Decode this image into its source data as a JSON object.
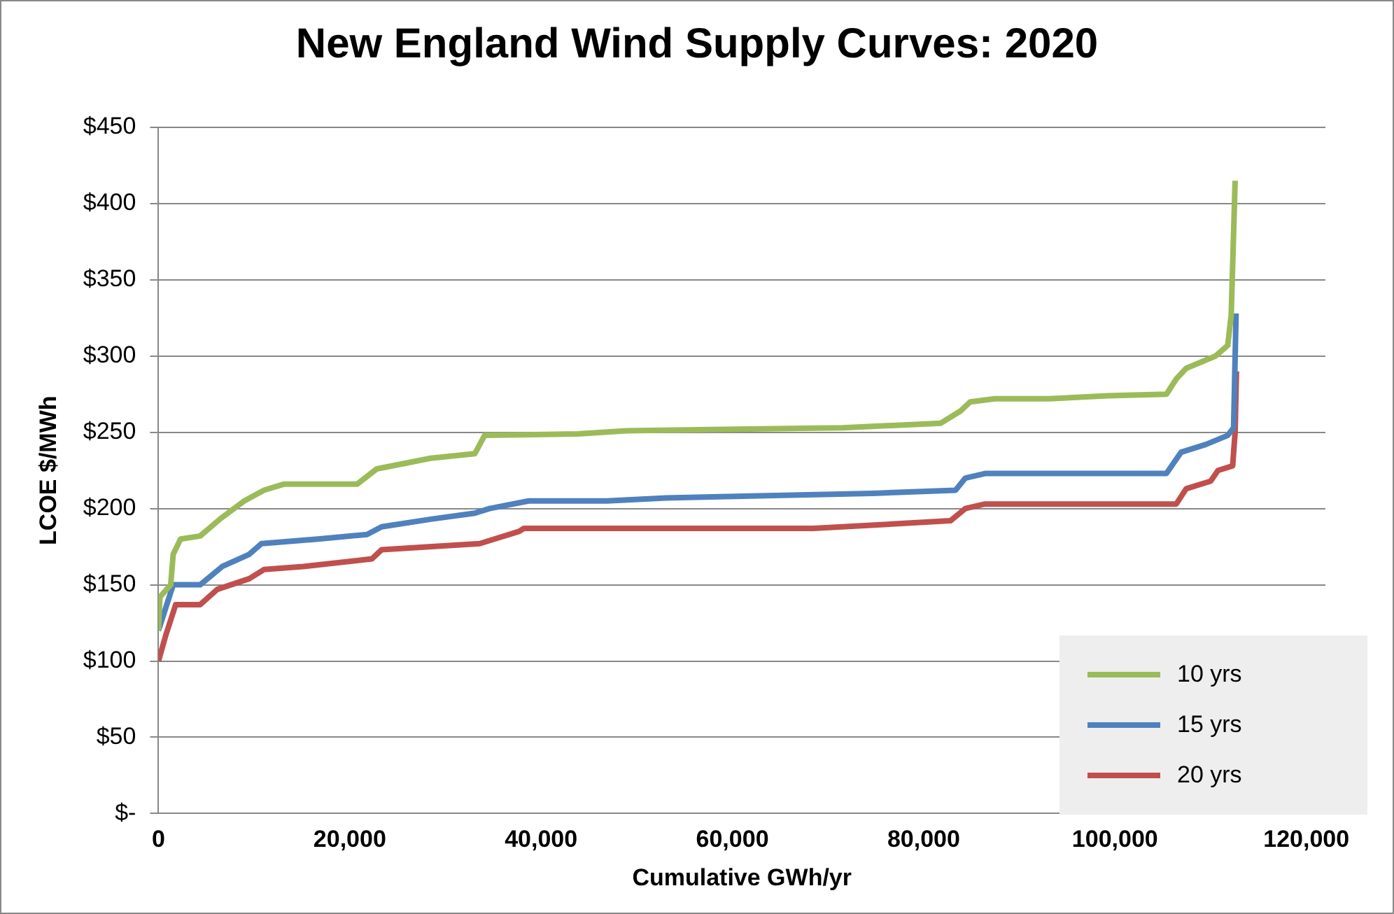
{
  "chart_data": {
    "type": "line",
    "title": "New England Wind Supply Curves: 2020",
    "xlabel": "Cumulative GWh/yr",
    "ylabel": "LCOE $/MWh",
    "xlim": [
      0,
      122000
    ],
    "xticks": [
      0,
      {
        "value": 20000,
        "label": "20,000"
      },
      {
        "value": 40000,
        "label": "40,000"
      },
      {
        "value": 60000,
        "label": "60,000"
      },
      {
        "value": 80000,
        "label": "80,000"
      },
      {
        "value": 100000,
        "label": "100,000"
      },
      {
        "value": 120000,
        "label": "120,000"
      }
    ],
    "ylim": [
      0,
      450
    ],
    "yticks": [
      {
        "value": 0,
        "label": "$-"
      },
      {
        "value": 50,
        "label": "$50"
      },
      {
        "value": 100,
        "label": "$100"
      },
      {
        "value": 150,
        "label": "$150"
      },
      {
        "value": 200,
        "label": "$200"
      },
      {
        "value": 250,
        "label": "$250"
      },
      {
        "value": 300,
        "label": "$300"
      },
      {
        "value": 350,
        "label": "$350"
      },
      {
        "value": 400,
        "label": "$400"
      },
      {
        "value": 450,
        "label": "$450"
      }
    ],
    "grid": "y",
    "legend": "bottom right",
    "marker": "none",
    "line_style": "solid",
    "series": [
      {
        "name": "10 yrs",
        "color": "#9bbb59",
        "x": [
          0,
          150,
          1280,
          1540,
          2310,
          4360,
          6410,
          8970,
          11030,
          13080,
          20770,
          22820,
          28460,
          33080,
          34100,
          43850,
          48970,
          71540,
          81790,
          83850,
          84870,
          87440,
          93080,
          99230,
          105380,
          106410,
          107440,
          110510,
          111790,
          112150,
          112560
        ],
        "values": [
          120,
          142,
          150,
          170,
          180,
          182,
          193,
          205,
          212,
          216,
          216,
          226,
          233,
          236,
          248,
          249,
          251,
          253,
          256,
          264,
          270,
          272,
          272,
          274,
          275,
          285,
          292,
          300,
          307,
          327,
          415
        ]
      },
      {
        "name": "15 yrs",
        "color": "#4f81bd",
        "x": [
          0,
          1540,
          4360,
          6670,
          9490,
          10770,
          16670,
          21800,
          23330,
          28460,
          33080,
          34620,
          38720,
          46920,
          53080,
          74620,
          83330,
          84360,
          86410,
          93080,
          105380,
          106920,
          109490,
          111790,
          112400,
          112660
        ],
        "values": [
          120,
          150,
          150,
          162,
          170,
          177,
          180,
          183,
          188,
          193,
          197,
          200,
          205,
          205,
          207,
          210,
          212,
          220,
          223,
          223,
          223,
          237,
          242,
          248,
          253,
          328
        ]
      },
      {
        "name": "20 yrs",
        "color": "#c0504d",
        "x": [
          0,
          770,
          1800,
          4360,
          6150,
          9490,
          11030,
          15130,
          22310,
          23330,
          33590,
          37690,
          38200,
          46920,
          68460,
          82800,
          84360,
          86410,
          93080,
          106410,
          107440,
          110000,
          110770,
          112300,
          112560,
          112700
        ],
        "values": [
          100,
          117,
          137,
          137,
          147,
          154,
          160,
          162,
          167,
          173,
          177,
          185,
          187,
          187,
          187,
          192,
          200,
          203,
          203,
          203,
          213,
          218,
          225,
          228,
          250,
          290
        ]
      }
    ]
  }
}
